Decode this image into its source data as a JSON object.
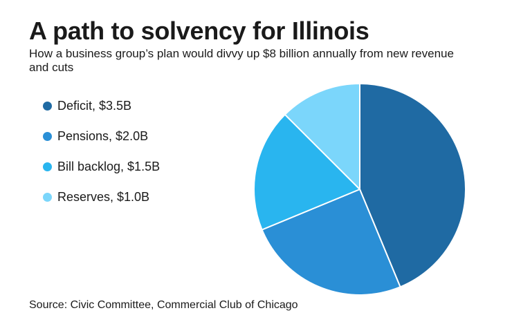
{
  "chart_data": {
    "type": "pie",
    "title": "A path to solvency for Illinois",
    "subtitle": "How a business group’s plan would divvy up $8 billion annually from new revenue and cuts",
    "source": "Source: Civic Committee, Commercial Club of Chicago",
    "legend_position": "left",
    "slices": [
      {
        "name": "Deficit",
        "value": 3.5,
        "label": "Deficit, $3.5B",
        "color": "#1f6aa3"
      },
      {
        "name": "Pensions",
        "value": 2.0,
        "label": "Pensions, $2.0B",
        "color": "#2a8fd6"
      },
      {
        "name": "Bill backlog",
        "value": 1.5,
        "label": "Bill backlog, $1.5B",
        "color": "#29b5ef"
      },
      {
        "name": "Reserves",
        "value": 1.0,
        "label": "Reserves, $1.0B",
        "color": "#7bd6fb"
      }
    ],
    "unit": "$B"
  }
}
